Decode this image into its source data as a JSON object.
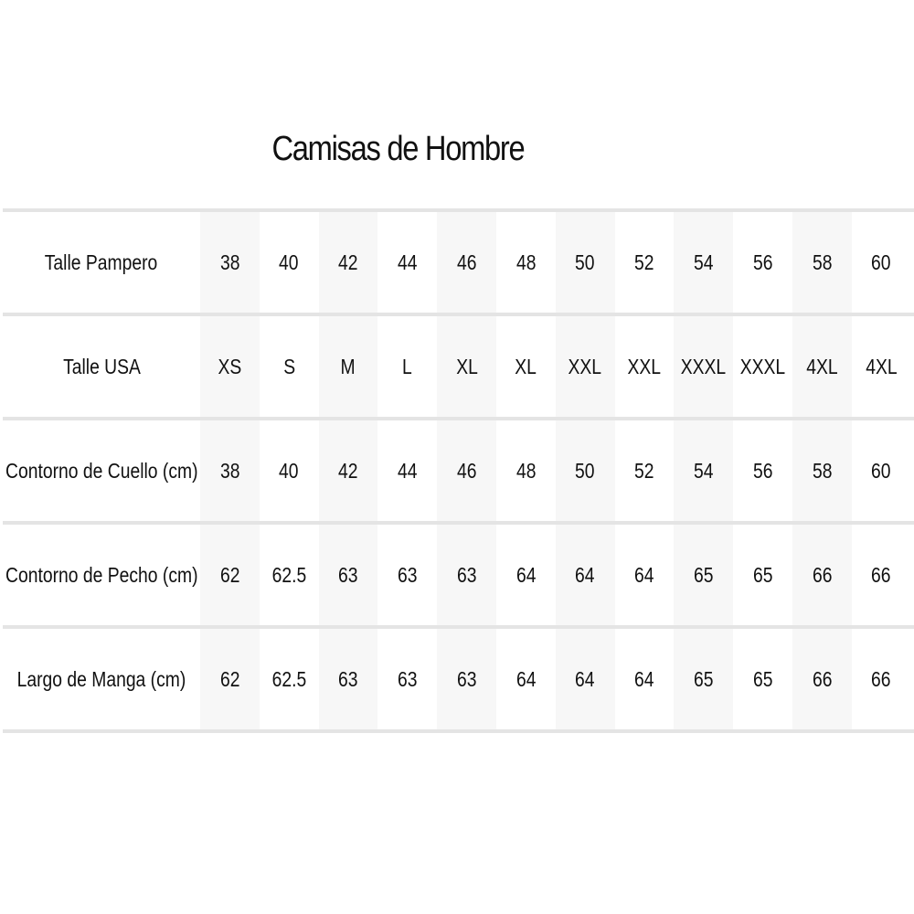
{
  "title": "Camisas de Hombre",
  "rows": [
    {
      "label": "Talle Pampero",
      "values": [
        "38",
        "40",
        "42",
        "44",
        "46",
        "48",
        "50",
        "52",
        "54",
        "56",
        "58",
        "60"
      ]
    },
    {
      "label": "Talle USA",
      "values": [
        "XS",
        "S",
        "M",
        "L",
        "XL",
        "XL",
        "XXL",
        "XXL",
        "XXXL",
        "XXXL",
        "4XL",
        "4XL"
      ]
    },
    {
      "label": "Contorno de Cuello (cm)",
      "values": [
        "38",
        "40",
        "42",
        "44",
        "46",
        "48",
        "50",
        "52",
        "54",
        "56",
        "58",
        "60"
      ]
    },
    {
      "label": "Contorno de Pecho (cm)",
      "values": [
        "62",
        "62.5",
        "63",
        "63",
        "63",
        "64",
        "64",
        "64",
        "65",
        "65",
        "66",
        "66"
      ]
    },
    {
      "label": "Largo de Manga (cm)",
      "values": [
        "62",
        "62.5",
        "63",
        "63",
        "63",
        "64",
        "64",
        "64",
        "65",
        "65",
        "66",
        "66"
      ]
    }
  ]
}
